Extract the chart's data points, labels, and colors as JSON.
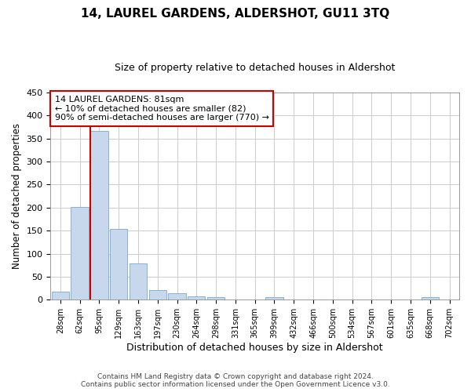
{
  "title": "14, LAUREL GARDENS, ALDERSHOT, GU11 3TQ",
  "subtitle": "Size of property relative to detached houses in Aldershot",
  "xlabel": "Distribution of detached houses by size in Aldershot",
  "ylabel": "Number of detached properties",
  "bin_labels": [
    "28sqm",
    "62sqm",
    "95sqm",
    "129sqm",
    "163sqm",
    "197sqm",
    "230sqm",
    "264sqm",
    "298sqm",
    "331sqm",
    "365sqm",
    "399sqm",
    "432sqm",
    "466sqm",
    "500sqm",
    "534sqm",
    "567sqm",
    "601sqm",
    "635sqm",
    "668sqm",
    "702sqm"
  ],
  "bar_values": [
    17,
    202,
    366,
    154,
    79,
    21,
    14,
    8,
    5,
    0,
    0,
    5,
    0,
    0,
    0,
    0,
    0,
    0,
    0,
    5,
    0
  ],
  "bar_color": "#c8d8ec",
  "bar_edge_color": "#7aaace",
  "vline_color": "#cc0000",
  "vline_x_index": 2,
  "annotation_line0": "14 LAUREL GARDENS: 81sqm",
  "annotation_line1": "← 10% of detached houses are smaller (82)",
  "annotation_line2": "90% of semi-detached houses are larger (770) →",
  "annotation_box_color": "#ffffff",
  "annotation_box_edge": "#cc0000",
  "ylim": [
    0,
    450
  ],
  "yticks": [
    0,
    50,
    100,
    150,
    200,
    250,
    300,
    350,
    400,
    450
  ],
  "footer_line1": "Contains HM Land Registry data © Crown copyright and database right 2024.",
  "footer_line2": "Contains public sector information licensed under the Open Government Licence v3.0.",
  "bg_color": "#ffffff",
  "plot_bg_color": "#ffffff",
  "grid_color": "#cccccc",
  "title_fontsize": 11,
  "subtitle_fontsize": 9,
  "ylabel_fontsize": 8.5,
  "xlabel_fontsize": 9
}
